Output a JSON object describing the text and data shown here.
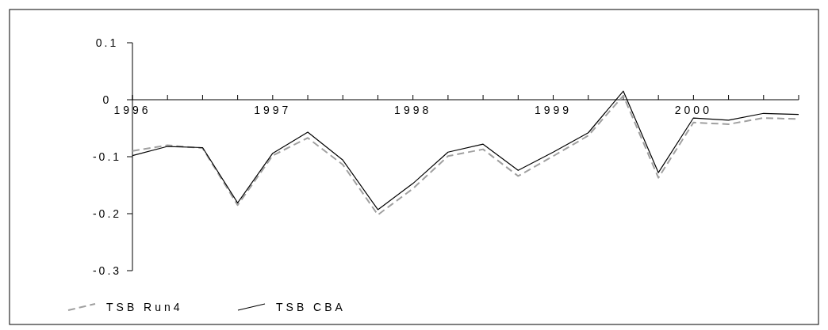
{
  "chart_data": {
    "type": "line",
    "x": [
      1996,
      1996.25,
      1996.5,
      1996.75,
      1997,
      1997.25,
      1997.5,
      1997.75,
      1998,
      1998.25,
      1998.5,
      1998.75,
      1999,
      1999.25,
      1999.5,
      1999.75,
      2000,
      2000.25,
      2000.5,
      2000.75
    ],
    "series": [
      {
        "name": "TSB Run4",
        "color": "#a0a0a0",
        "line_style": "dashed",
        "values": [
          -0.09,
          -0.08,
          -0.085,
          -0.185,
          -0.098,
          -0.067,
          -0.114,
          -0.202,
          -0.156,
          -0.099,
          -0.087,
          -0.134,
          -0.099,
          -0.063,
          0.007,
          -0.137,
          -0.04,
          -0.043,
          -0.032,
          -0.034
        ]
      },
      {
        "name": "TSB CBA",
        "color": "#000000",
        "line_style": "solid",
        "values": [
          -0.098,
          -0.082,
          -0.084,
          -0.181,
          -0.094,
          -0.057,
          -0.106,
          -0.193,
          -0.147,
          -0.092,
          -0.078,
          -0.124,
          -0.092,
          -0.058,
          0.015,
          -0.128,
          -0.032,
          -0.036,
          -0.024,
          -0.026
        ]
      }
    ],
    "xlim": [
      1996,
      2000.75
    ],
    "xticks": [
      1996,
      {
        "value": 1996.25,
        "label": null
      },
      {
        "value": 1996.5,
        "label": null
      },
      {
        "value": 1996.75,
        "label": null
      },
      1997,
      {
        "value": 1997.25,
        "label": null
      },
      {
        "value": 1997.5,
        "label": null
      },
      {
        "value": 1997.75,
        "label": null
      },
      1998,
      {
        "value": 1998.25,
        "label": null
      },
      {
        "value": 1998.5,
        "label": null
      },
      {
        "value": 1998.75,
        "label": null
      },
      1999,
      {
        "value": 1999.25,
        "label": null
      },
      {
        "value": 1999.5,
        "label": null
      },
      {
        "value": 1999.75,
        "label": null
      },
      2000,
      {
        "value": 2000.25,
        "label": null
      },
      {
        "value": 2000.5,
        "label": null
      },
      {
        "value": 2000.75,
        "label": null
      }
    ],
    "ylim": [
      -0.3,
      0.1
    ],
    "yticks": [
      -0.3,
      -0.2,
      -0.1,
      0,
      0.1
    ],
    "legend": "bottom left"
  }
}
